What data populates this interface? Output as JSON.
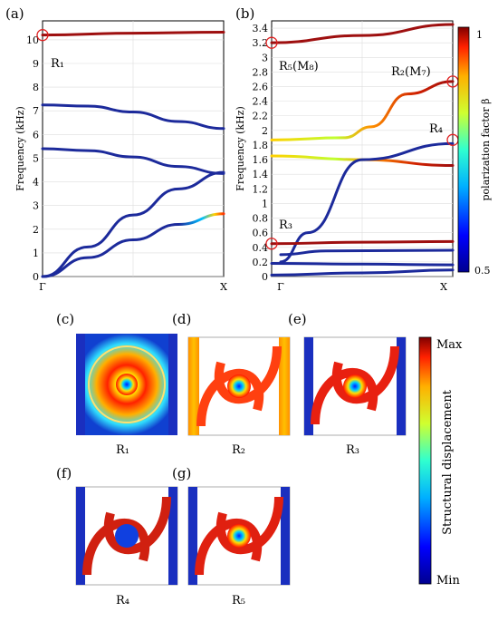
{
  "panels": {
    "a": "(a)",
    "b": "(b)",
    "c": "(c)",
    "d": "(d)",
    "e": "(e)",
    "f": "(f)",
    "g": "(g)"
  },
  "chart_data": [
    {
      "type": "line",
      "panel": "(a)",
      "ylabel": "Frequency (kHz)",
      "x_ticks": [
        "Γ",
        "X"
      ],
      "ylim": [
        0,
        10.8
      ],
      "y_ticks": [
        0,
        1,
        2,
        3,
        4,
        5,
        6,
        7,
        8,
        9,
        10
      ],
      "grid": true,
      "series": [
        {
          "k": [
            0,
            0.5,
            1
          ],
          "f": [
            10.2,
            10.28,
            10.32
          ],
          "beta": "high"
        },
        {
          "k": [
            0,
            0.25,
            0.5,
            0.75,
            1
          ],
          "f": [
            7.25,
            7.2,
            6.95,
            6.55,
            6.25
          ],
          "beta": "low"
        },
        {
          "k": [
            0,
            0.25,
            0.5,
            0.75,
            1
          ],
          "f": [
            5.4,
            5.32,
            5.05,
            4.65,
            4.35
          ],
          "beta": "low"
        },
        {
          "k": [
            0,
            0.25,
            0.5,
            0.75,
            1
          ],
          "f": [
            0,
            1.25,
            2.6,
            3.7,
            4.4
          ],
          "beta": "low"
        },
        {
          "k": [
            0,
            0.25,
            0.5,
            0.75,
            1
          ],
          "f": [
            0,
            0.8,
            1.55,
            2.2,
            2.65
          ],
          "beta": "mixed"
        }
      ],
      "markers": [
        {
          "k": 0,
          "f": 10.2,
          "label": "R₁"
        }
      ]
    },
    {
      "type": "line",
      "panel": "(b)",
      "ylabel": "Frequency (kHz)",
      "x_ticks": [
        "Γ",
        "X"
      ],
      "ylim": [
        0,
        3.5
      ],
      "y_ticks": [
        0,
        0.2,
        0.4,
        0.6,
        0.8,
        1,
        1.2,
        1.4,
        1.6,
        1.8,
        2,
        2.2,
        2.4,
        2.6,
        2.8,
        3,
        3.2,
        3.4
      ],
      "grid": true,
      "colorbar": {
        "label": "polarization factor β",
        "min": "0.5",
        "max": "1"
      },
      "series": [
        {
          "k": [
            0,
            0.5,
            1
          ],
          "f": [
            3.2,
            3.3,
            3.45
          ],
          "beta": "high"
        },
        {
          "k": [
            0,
            0.4,
            0.55,
            0.75,
            1
          ],
          "f": [
            1.87,
            1.9,
            2.05,
            2.5,
            2.67
          ],
          "beta": "mixed"
        },
        {
          "k": [
            0,
            0.5,
            1
          ],
          "f": [
            1.87,
            1.87,
            1.87
          ],
          "beta": "mixed"
        },
        {
          "k": [
            0,
            0.5,
            1
          ],
          "f": [
            1.65,
            1.6,
            1.52
          ],
          "beta": "mixed"
        },
        {
          "k": [
            0.05,
            0.2,
            0.5,
            1
          ],
          "f": [
            0.2,
            0.6,
            1.6,
            1.82
          ],
          "beta": "low"
        },
        {
          "k": [
            0,
            0.5,
            1
          ],
          "f": [
            0.45,
            0.47,
            0.48
          ],
          "beta": "high"
        },
        {
          "k": [
            0.05,
            0.3,
            1
          ],
          "f": [
            0.3,
            0.35,
            0.36
          ],
          "beta": "low"
        },
        {
          "k": [
            0,
            0.5,
            1
          ],
          "f": [
            0.18,
            0.17,
            0.16
          ],
          "beta": "low"
        },
        {
          "k": [
            0,
            0.5,
            1
          ],
          "f": [
            0.02,
            0.05,
            0.09
          ],
          "beta": "low"
        }
      ],
      "markers": [
        {
          "k": 0,
          "f": 3.2,
          "label": "R₅(M₈)"
        },
        {
          "k": 1,
          "f": 2.67,
          "label": "R₂(M₇)"
        },
        {
          "k": 1,
          "f": 1.87,
          "label": "R₄"
        },
        {
          "k": 0,
          "f": 0.45,
          "label": "R₃"
        }
      ]
    }
  ],
  "modes": [
    {
      "panel": "(c)",
      "label": "R₁"
    },
    {
      "panel": "(d)",
      "label": "R₂"
    },
    {
      "panel": "(e)",
      "label": "R₃"
    },
    {
      "panel": "(f)",
      "label": "R₄"
    },
    {
      "panel": "(g)",
      "label": "R₅"
    }
  ],
  "displacement_colorbar": {
    "label": "Structural displacement",
    "max": "Max",
    "min": "Min"
  },
  "colors": {
    "high_beta": "#9e0f0f",
    "low_beta": "#1c2a9b",
    "marker": "#e02020"
  }
}
